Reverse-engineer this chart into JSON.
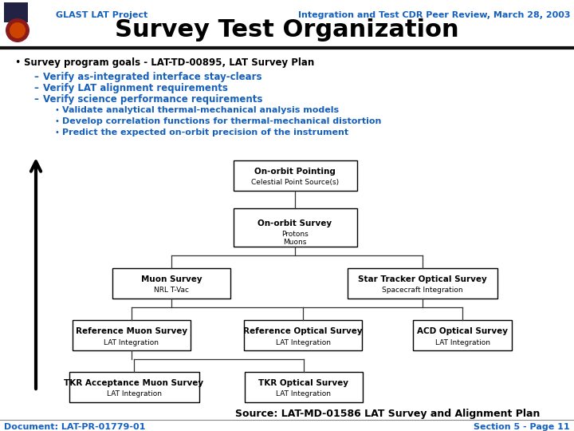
{
  "title": "Survey Test Organization",
  "header_left": "GLAST LAT Project",
  "header_right": "Integration and Test CDR Peer Review, March 28, 2003",
  "bg_color": "#ffffff",
  "header_text_color": "#1560bd",
  "title_color": "#000000",
  "bullet_main": "Survey program goals - LAT-TD-00895, LAT Survey Plan",
  "sub_bullets": [
    "Verify as-integrated interface stay-clears",
    "Verify LAT alignment requirements",
    "Verify science performance requirements"
  ],
  "sub_sub_bullets": [
    "Validate analytical thermal-mechanical analysis models",
    "Develop correlation functions for thermal-mechanical distortion",
    "Predict the expected on-orbit precision of the instrument"
  ],
  "source_text": "Source: LAT-MD-01586 LAT Survey and Alignment Plan",
  "footer_left": "Document: LAT-PR-01779-01",
  "footer_right": "Section 5 - Page 11",
  "footer_color": "#1560bd",
  "box_color": "#000000",
  "box_face": "#ffffff",
  "dark_blue": "#000080",
  "mid_blue": "#1560bd"
}
